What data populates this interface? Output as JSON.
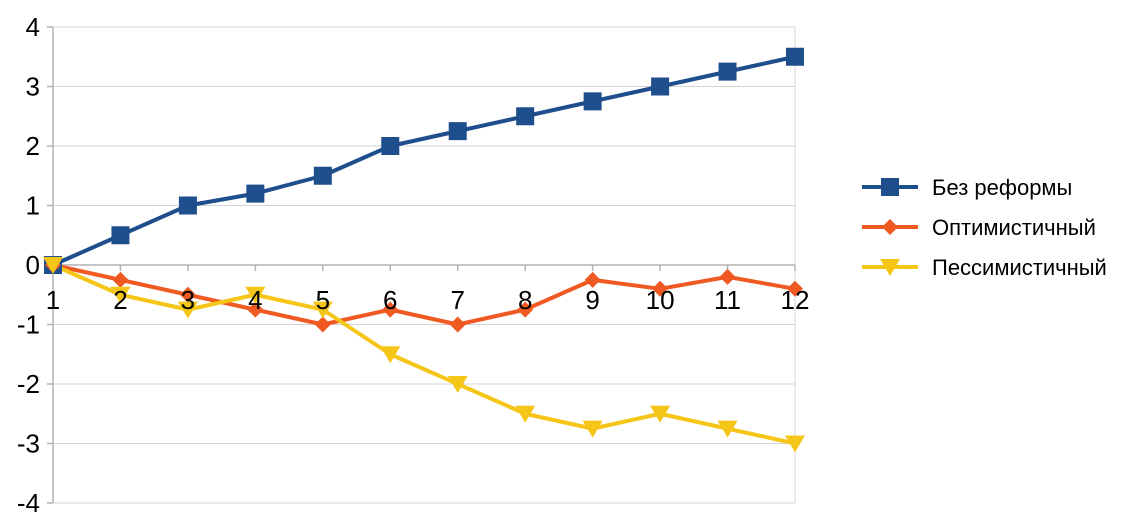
{
  "chart_data": {
    "type": "line",
    "title": "",
    "xlabel": "",
    "ylabel": "",
    "x": [
      1,
      2,
      3,
      4,
      5,
      6,
      7,
      8,
      9,
      10,
      11,
      12
    ],
    "ylim": [
      -4,
      4
    ],
    "y_ticks": [
      4,
      3,
      2,
      1,
      0,
      -1,
      -2,
      -3,
      -4
    ],
    "grid": "horizontal",
    "legend_position": "right",
    "series": [
      {
        "name": "Без реформы",
        "color": "#1f4e8c",
        "marker": "square",
        "values": [
          0,
          0.5,
          1,
          1.2,
          1.5,
          2,
          2.25,
          2.5,
          2.75,
          3,
          3.25,
          3.5
        ]
      },
      {
        "name": "Оптимистичный",
        "color": "#f05a22",
        "marker": "diamond",
        "values": [
          0,
          -0.25,
          -0.5,
          -0.75,
          -1,
          -0.75,
          -1,
          -0.75,
          -0.25,
          -0.4,
          -0.2,
          -0.4
        ]
      },
      {
        "name": "Пессимистичный",
        "color": "#f5c518",
        "marker": "triangle-down",
        "values": [
          0,
          -0.5,
          -0.75,
          -0.5,
          -0.75,
          -1.5,
          -2,
          -2.5,
          -2.75,
          -2.5,
          -2.75,
          -3
        ]
      }
    ]
  }
}
